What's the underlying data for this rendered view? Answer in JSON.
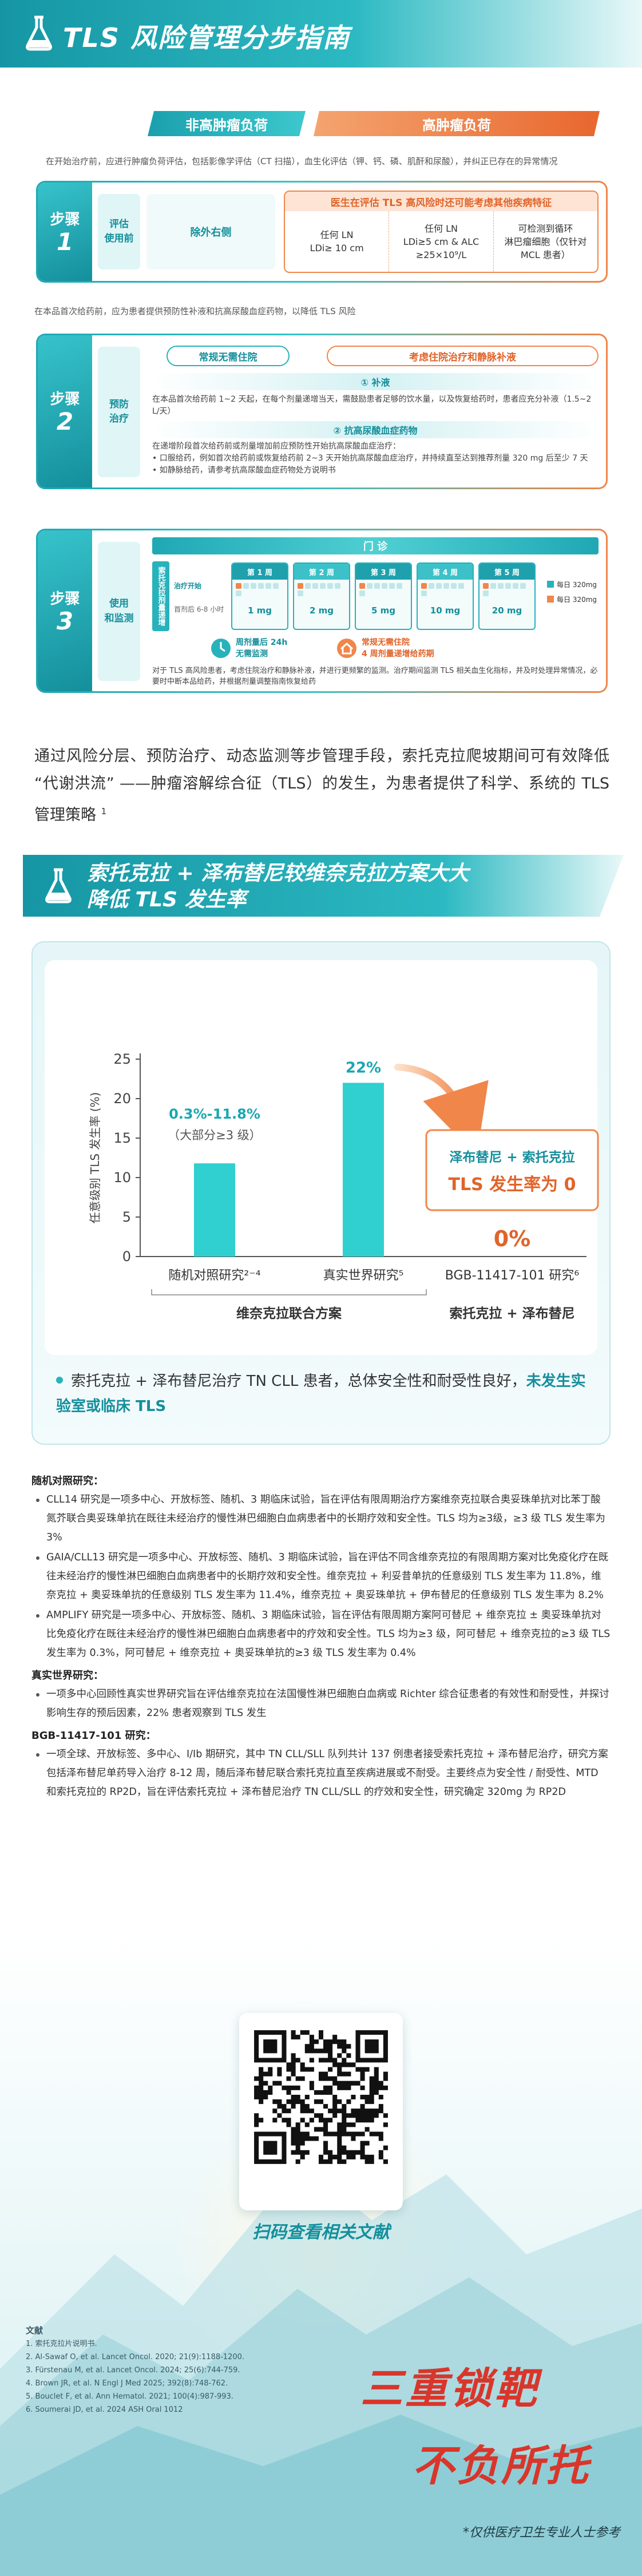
{
  "header": {
    "title": "TLS 风险管理分步指南"
  },
  "tabs": [
    "非高肿瘤负荷",
    "高肿瘤负荷"
  ],
  "intro": "在开始治疗前，应进行肿瘤负荷评估，包括影像学评估（CT 扫描），血生化评估（钾、钙、磷、肌酐和尿酸），并纠正已存在的异常情况",
  "step1": {
    "label": "步骤",
    "number": "1",
    "phase": [
      "评估",
      "使用前"
    ],
    "left": "除外右侧",
    "panel_title": "医生在评估 TLS 高风险时还可能考虑其他疾病特征",
    "criteria": [
      [
        "任何 LN",
        "LDi≥ 10 cm"
      ],
      [
        "任何 LN",
        "LDi≥5 cm & ALC",
        "≥25×10⁹/L"
      ],
      [
        "可检测到循环",
        "淋巴瘤细胞（仅针对",
        "MCL 患者）"
      ]
    ]
  },
  "note2": "在本品首次给药前，应为患者提供预防性补液和抗高尿酸血症药物，以降低 TLS 风险",
  "step2": {
    "label": "步骤",
    "number": "2",
    "phase": [
      "预防",
      "治疗"
    ],
    "tags": [
      "常规无需住院",
      "考虑住院治疗和静脉补液"
    ],
    "hydration_title": "① 补液",
    "hydration_text": "在本品首次给药前 1~2 天起，在每个剂量递增当天，需鼓励患者足够的饮水量，以及恢复给药时，患者应充分补液（1.5~2 L/天）",
    "drug_title": "② 抗高尿酸血症药物",
    "drug_lines": [
      "在递增阶段首次给药前或剂量增加前应预防性开始抗高尿酸血症治疗：",
      "• 口服给药，例如首次给药前或恢复给药前 2~3 天开始抗高尿酸血症治疗，并持续直至达到推荐剂量 320 mg 后至少 7 天",
      "• 如静脉给药，请参考抗高尿酸血症药物处方说明书"
    ]
  },
  "step3": {
    "label": "步骤",
    "number": "3",
    "phase": [
      "使用",
      "和监测"
    ],
    "clinic": "门 诊",
    "side_tag": "索托克拉剂量递增",
    "row_labels": [
      "治疗开始",
      "首剂后 6-8 小时"
    ],
    "weeks": [
      "第 1 周",
      "第 2 周",
      "第 3 周",
      "第 4 周",
      "第 5 周"
    ],
    "doses": [
      "1 mg",
      "2 mg",
      "5 mg",
      "10 mg",
      "20 mg"
    ],
    "legend": [
      "每日 320mg",
      "每日 320mg"
    ],
    "notes": [
      [
        "周剂量后 24h",
        "无需监测"
      ],
      [
        "常规无需住院",
        "4 周剂量递增给药期"
      ]
    ],
    "text": "对于 TLS 高风险患者，考虑住院治疗和静脉补液，并进行更频繁的监测。治疗期间监测 TLS 相关血生化指标，并及时处理异常情况，必要时中断本品给药，并根据剂量调整指南恢复给药"
  },
  "summary": {
    "text": "通过风险分层、预防治疗、动态监测等步管理手段，索托克拉爬坡期间可有效降低 “代谢洪流” ——肿瘤溶解综合征（TLS）的发生，为患者提供了科学、系统的 TLS 管理策略",
    "ref": "1"
  },
  "section2": {
    "title": [
      "索托克拉 + 泽布替尼较维奈克拉方案大大",
      "降低 TLS 发生率"
    ]
  },
  "chart_data": {
    "type": "bar",
    "ylabel": "任意级别 TLS 发生率 (%)",
    "categories": [
      "随机对照研究²⁻⁴",
      "真实世界研究⁵",
      "BGB-11417-101 研究⁶"
    ],
    "values": [
      11.8,
      22,
      0
    ],
    "value_labels": [
      null,
      "22%",
      "0%"
    ],
    "color": "#2fd0cf",
    "ylim": [
      0,
      25
    ],
    "yticks": [
      0,
      5,
      10,
      15,
      20,
      25
    ],
    "grid": false,
    "groups": [
      "维奈克拉联合方案",
      "索托克拉 + 泽布替尼"
    ],
    "annotations": [
      "0.3%-11.8%",
      "（大部分≥3 级）"
    ],
    "callout": [
      "泽布替尼 + 索托克拉",
      "TLS 发生率为 0"
    ]
  },
  "chart_note": {
    "text": "索托克拉 + 泽布替尼治疗 TN CLL 患者，总体安全性和耐受性良好，",
    "highlight": "未发生实验室或临床 TLS"
  },
  "studies": [
    {
      "heading": "随机对照研究：",
      "items": [
        "CLL14 研究是一项多中心、开放标签、随机、3 期临床试验，旨在评估有限周期治疗方案维奈克拉联合奥妥珠单抗对比苯丁酸氮芥联合奥妥珠单抗在既往未经治疗的慢性淋巴细胞白血病患者中的长期疗效和安全性。TLS 均为≥3级，≥3 级 TLS 发生率为 3%",
        "GAIA/CLL13 研究是一项多中心、开放标签、随机、3 期临床试验，旨在评估不同含维奈克拉的有限周期方案对比免疫化疗在既往未经治疗的慢性淋巴细胞白血病患者中的长期疗效和安全性。维奈克拉 + 利妥昔单抗的任意级别 TLS 发生率为 11.8%，维奈克拉 + 奥妥珠单抗的任意级别 TLS 发生率为 11.4%，维奈克拉 + 奥妥珠单抗 + 伊布替尼的任意级别 TLS 发生率为 8.2%",
        "AMPLIFY 研究是一项多中心、开放标签、随机、3 期临床试验，旨在评估有限周期方案阿可替尼 + 维奈克拉 ± 奥妥珠单抗对比免疫化疗在既往未经治疗的慢性淋巴细胞白血病患者中的疗效和安全性。TLS 均为≥3 级，阿可替尼 + 维奈克拉的≥3 级 TLS 发生率为 0.3%，阿可替尼 + 维奈克拉 + 奥妥珠单抗的≥3 级 TLS 发生率为 0.4%"
      ]
    },
    {
      "heading": "真实世界研究：",
      "items": [
        "一项多中心回顾性真实世界研究旨在评估维奈克拉在法国慢性淋巴细胞白血病或 Richter 综合征患者的有效性和耐受性，并探讨影响生存的预后因素，22% 患者观察到 TLS 发生"
      ]
    },
    {
      "heading": "BGB-11417-101 研究：",
      "items": [
        "一项全球、开放标签、多中心、I/Ib 期研究，其中 TN CLL/SLL 队列共计 137 例患者接受索托克拉 + 泽布替尼治疗，研究方案包括泽布替尼单药导入治疗 8-12 周，随后泽布替尼联合索托克拉直至疾病进展或不耐受。主要终点为安全性 / 耐受性、MTD 和索托克拉的 RP2D，旨在评估索托克拉 + 泽布替尼治疗 TN CLL/SLL 的疗效和安全性，研究确定 320mg 为 RP2D"
      ]
    }
  ],
  "qr": {
    "caption": "扫码查看相关文献"
  },
  "references": {
    "title": "文献",
    "items": [
      "1. 索托克拉片说明书.",
      "2. Al-Sawaf O, et al. Lancet Oncol. 2020; 21(9):1188-1200.",
      "3. Fürstenau M, et al. Lancet Oncol. 2024; 25(6):744-759.",
      "4. Brown JR, et al. N Engl J Med 2025; 392(8):748-762.",
      "5. Bouclet F, et al. Ann Hematol. 2021; 100(4):987-993.",
      "6. Soumerai JD, et al. 2024 ASH Oral 1012"
    ]
  },
  "slogan": [
    "三重锁靶",
    "不负所托"
  ],
  "disclaimer": "*仅供医疗卫生专业人士参考"
}
